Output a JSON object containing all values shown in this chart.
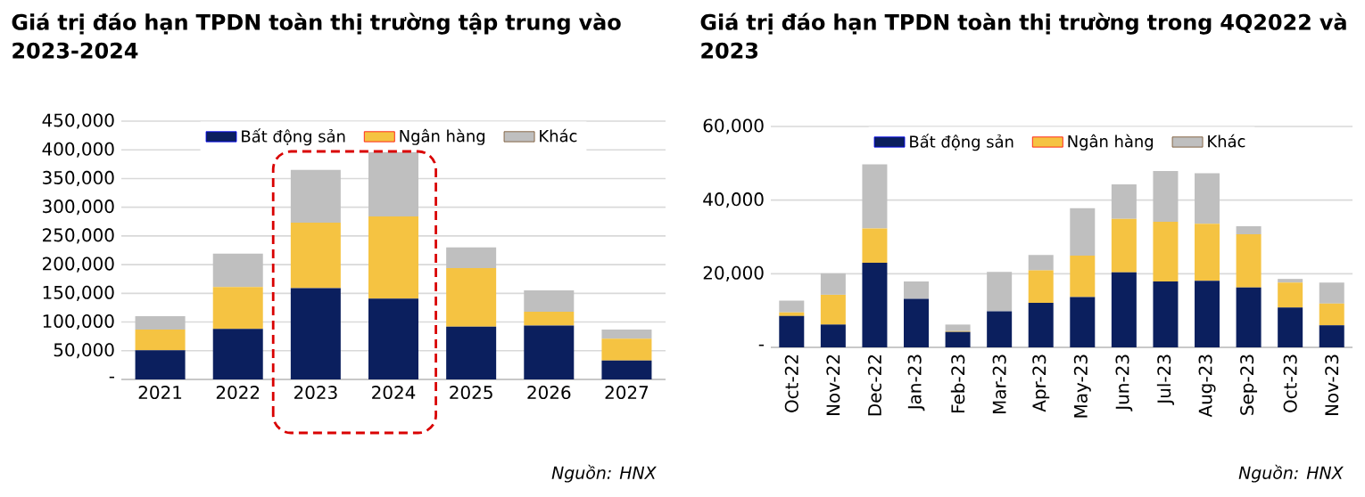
{
  "chart_data": [
    {
      "type": "bar",
      "stacked": true,
      "title": "Giá trị đáo hạn TPDN toàn thị trường tập trung vào 2023-2024",
      "categories": [
        "2021",
        "2022",
        "2023",
        "2024",
        "2025",
        "2026",
        "2027"
      ],
      "series": [
        {
          "name": "Bất động sản",
          "color": "#0b1f5e",
          "values": [
            51000,
            88000,
            159000,
            141000,
            92000,
            94000,
            33000
          ]
        },
        {
          "name": "Ngân hàng",
          "color": "#f5c342",
          "values": [
            36000,
            73000,
            114000,
            143000,
            102000,
            24000,
            38000
          ]
        },
        {
          "name": "Khác",
          "color": "#bfbfbf",
          "values": [
            23000,
            58000,
            92000,
            112000,
            36000,
            37000,
            16000
          ]
        }
      ],
      "ylim": [
        0,
        450000
      ],
      "yticks": [
        {
          "value": 0,
          "label": "-"
        },
        {
          "value": 50000,
          "label": "50,000"
        },
        {
          "value": 100000,
          "label": "100,000"
        },
        {
          "value": 150000,
          "label": "150,000"
        },
        {
          "value": 200000,
          "label": "200,000"
        },
        {
          "value": 250000,
          "label": "250,000"
        },
        {
          "value": 300000,
          "label": "300,000"
        },
        {
          "value": 350000,
          "label": "350,000"
        },
        {
          "value": 400000,
          "label": "400,000"
        },
        {
          "value": 450000,
          "label": "450,000"
        }
      ],
      "grid": "y",
      "legend": "top",
      "annotations": [
        "Nguồn: HNX"
      ]
    },
    {
      "type": "bar",
      "stacked": true,
      "title": "Giá trị đáo hạn TPDN toàn thị trường trong 4Q2022 và 2023",
      "categories": [
        "Oct-22",
        "Nov-22",
        "Dec-22",
        "Jan-23",
        "Feb-23",
        "Mar-23",
        "Apr-23",
        "May-23",
        "Jun-23",
        "Jul-23",
        "Aug-23",
        "Sep-23",
        "Oct-23",
        "Nov-23"
      ],
      "series": [
        {
          "name": "Bất động sản",
          "color": "#0b1f5e",
          "values": [
            8500,
            6200,
            23000,
            13200,
            4200,
            9800,
            12100,
            13700,
            20400,
            17900,
            18100,
            16300,
            10800,
            6000
          ]
        },
        {
          "name": "Ngân hàng",
          "color": "#f5c342",
          "values": [
            1000,
            8100,
            9300,
            null,
            200,
            null,
            8800,
            11200,
            14500,
            16200,
            15500,
            14400,
            6800,
            5900
          ]
        },
        {
          "name": "Khác",
          "color": "#bfbfbf",
          "values": [
            3200,
            5800,
            17400,
            4700,
            1800,
            10700,
            4200,
            12900,
            9400,
            13800,
            13700,
            2200,
            1000,
            5700
          ]
        }
      ],
      "ylim": [
        0,
        60000
      ],
      "yticks": [
        {
          "value": 0,
          "label": "-"
        },
        {
          "value": 20000,
          "label": "20,000"
        },
        {
          "value": 40000,
          "label": "40,000"
        },
        {
          "value": 60000,
          "label": "60,000"
        }
      ],
      "grid": "y",
      "legend": "top",
      "annotations": [
        "Nguồn: HNX"
      ]
    }
  ]
}
